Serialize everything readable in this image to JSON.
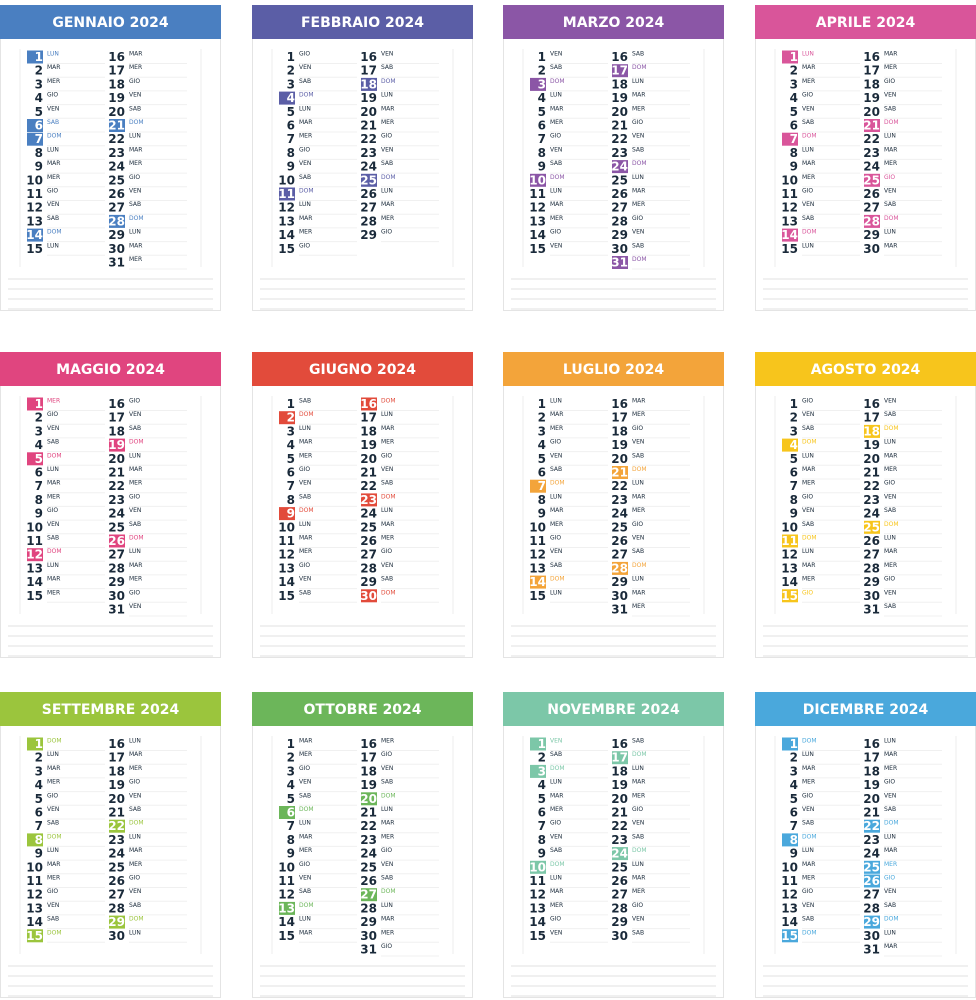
{
  "months": [
    {
      "title": "GENNAIO 2024",
      "color": "#4a7fc1",
      "days": [
        1,
        2,
        3,
        4,
        5,
        6,
        7,
        8,
        9,
        10,
        11,
        12,
        13,
        14,
        15,
        16,
        17,
        18,
        19,
        20,
        21,
        22,
        23,
        24,
        25,
        26,
        27,
        28,
        29,
        30,
        31
      ],
      "weekdays": [
        "LUN",
        "MAR",
        "MER",
        "GIO",
        "VEN",
        "SAB",
        "DOM",
        "LUN",
        "MAR",
        "MER",
        "GIO",
        "VEN",
        "SAB",
        "DOM",
        "LUN",
        "MAR",
        "MER",
        "GIO",
        "VEN",
        "SAB",
        "DOM",
        "LUN",
        "MAR",
        "MER",
        "GIO",
        "VEN",
        "SAB",
        "DOM",
        "LUN",
        "MAR",
        "MER"
      ],
      "highlight": [
        1,
        6,
        7,
        14,
        21,
        28
      ]
    },
    {
      "title": "FEBBRAIO 2024",
      "color": "#5b5ea6",
      "days": [
        1,
        2,
        3,
        4,
        5,
        6,
        7,
        8,
        9,
        10,
        11,
        12,
        13,
        14,
        15,
        16,
        17,
        18,
        19,
        20,
        21,
        22,
        23,
        24,
        25,
        26,
        27,
        28,
        29
      ],
      "weekdays": [
        "GIO",
        "VEN",
        "SAB",
        "DOM",
        "LUN",
        "MAR",
        "MER",
        "GIO",
        "VEN",
        "SAB",
        "DOM",
        "LUN",
        "MAR",
        "MER",
        "GIO",
        "VEN",
        "SAB",
        "DOM",
        "LUN",
        "MAR",
        "MER",
        "GIO",
        "VEN",
        "SAB",
        "DOM",
        "LUN",
        "MAR",
        "MER",
        "GIO"
      ],
      "highlight": [
        4,
        11,
        18,
        25
      ]
    },
    {
      "title": "MARZO 2024",
      "color": "#8b56a6",
      "days": [
        1,
        2,
        3,
        4,
        5,
        6,
        7,
        8,
        9,
        10,
        11,
        12,
        13,
        14,
        15,
        16,
        17,
        18,
        19,
        20,
        21,
        22,
        23,
        24,
        25,
        26,
        27,
        28,
        29,
        30,
        31
      ],
      "weekdays": [
        "VEN",
        "SAB",
        "DOM",
        "LUN",
        "MAR",
        "MER",
        "GIO",
        "VEN",
        "SAB",
        "DOM",
        "LUN",
        "MAR",
        "MER",
        "GIO",
        "VEN",
        "SAB",
        "DOM",
        "LUN",
        "MAR",
        "MER",
        "GIO",
        "VEN",
        "SAB",
        "DOM",
        "LUN",
        "MAR",
        "MER",
        "GIO",
        "VEN",
        "SAB",
        "DOM"
      ],
      "highlight": [
        3,
        10,
        17,
        24,
        31
      ]
    },
    {
      "title": "APRILE 2024",
      "color": "#d9559a",
      "days": [
        1,
        2,
        3,
        4,
        5,
        6,
        7,
        8,
        9,
        10,
        11,
        12,
        13,
        14,
        15,
        16,
        17,
        18,
        19,
        20,
        21,
        22,
        23,
        24,
        25,
        26,
        27,
        28,
        29,
        30
      ],
      "weekdays": [
        "LUN",
        "MAR",
        "MER",
        "GIO",
        "VEN",
        "SAB",
        "DOM",
        "LUN",
        "MAR",
        "MER",
        "GIO",
        "VEN",
        "SAB",
        "DOM",
        "LUN",
        "MAR",
        "MER",
        "GIO",
        "VEN",
        "SAB",
        "DOM",
        "LUN",
        "MAR",
        "MER",
        "GIO",
        "VEN",
        "SAB",
        "DOM",
        "LUN",
        "MAR"
      ],
      "highlight": [
        1,
        7,
        14,
        21,
        25,
        28
      ]
    },
    {
      "title": "MAGGIO 2024",
      "color": "#e0457f",
      "days": [
        1,
        2,
        3,
        4,
        5,
        6,
        7,
        8,
        9,
        10,
        11,
        12,
        13,
        14,
        15,
        16,
        17,
        18,
        19,
        20,
        21,
        22,
        23,
        24,
        25,
        26,
        27,
        28,
        29,
        30,
        31
      ],
      "weekdays": [
        "MER",
        "GIO",
        "VEN",
        "SAB",
        "DOM",
        "LUN",
        "MAR",
        "MER",
        "GIO",
        "VEN",
        "SAB",
        "DOM",
        "LUN",
        "MAR",
        "MER",
        "GIO",
        "VEN",
        "SAB",
        "DOM",
        "LUN",
        "MAR",
        "MER",
        "GIO",
        "VEN",
        "SAB",
        "DOM",
        "LUN",
        "MAR",
        "MER",
        "GIO",
        "VEN"
      ],
      "highlight": [
        1,
        5,
        12,
        19,
        26
      ]
    },
    {
      "title": "GIUGNO 2024",
      "color": "#e24b3b",
      "days": [
        1,
        2,
        3,
        4,
        5,
        6,
        7,
        8,
        9,
        10,
        11,
        12,
        13,
        14,
        15,
        16,
        17,
        18,
        19,
        20,
        21,
        22,
        23,
        24,
        25,
        26,
        27,
        28,
        29,
        30
      ],
      "weekdays": [
        "SAB",
        "DOM",
        "LUN",
        "MAR",
        "MER",
        "GIO",
        "VEN",
        "SAB",
        "DOM",
        "LUN",
        "MAR",
        "MER",
        "GIO",
        "VEN",
        "SAB",
        "DOM",
        "LUN",
        "MAR",
        "MER",
        "GIO",
        "VEN",
        "SAB",
        "DOM",
        "LUN",
        "MAR",
        "MER",
        "GIO",
        "VEN",
        "SAB",
        "DOM"
      ],
      "highlight": [
        2,
        9,
        16,
        23,
        30
      ]
    },
    {
      "title": "LUGLIO 2024",
      "color": "#f3a43a",
      "days": [
        1,
        2,
        3,
        4,
        5,
        6,
        7,
        8,
        9,
        10,
        11,
        12,
        13,
        14,
        15,
        16,
        17,
        18,
        19,
        20,
        21,
        22,
        23,
        24,
        25,
        26,
        27,
        28,
        29,
        30,
        31
      ],
      "weekdays": [
        "LUN",
        "MAR",
        "MER",
        "GIO",
        "VEN",
        "SAB",
        "DOM",
        "LUN",
        "MAR",
        "MER",
        "GIO",
        "VEN",
        "SAB",
        "DOM",
        "LUN",
        "MAR",
        "MER",
        "GIO",
        "VEN",
        "SAB",
        "DOM",
        "LUN",
        "MAR",
        "MER",
        "GIO",
        "VEN",
        "SAB",
        "DOM",
        "LUN",
        "MAR",
        "MER"
      ],
      "highlight": [
        7,
        14,
        21,
        28
      ]
    },
    {
      "title": "AGOSTO 2024",
      "color": "#f7c51c",
      "days": [
        1,
        2,
        3,
        4,
        5,
        6,
        7,
        8,
        9,
        10,
        11,
        12,
        13,
        14,
        15,
        16,
        17,
        18,
        19,
        20,
        21,
        22,
        23,
        24,
        25,
        26,
        27,
        28,
        29,
        30,
        31
      ],
      "weekdays": [
        "GIO",
        "VEN",
        "SAB",
        "DOM",
        "LUN",
        "MAR",
        "MER",
        "GIO",
        "VEN",
        "SAB",
        "DOM",
        "LUN",
        "MAR",
        "MER",
        "GIO",
        "VEN",
        "SAB",
        "DOM",
        "LUN",
        "MAR",
        "MER",
        "GIO",
        "VEN",
        "SAB",
        "DOM",
        "LUN",
        "MAR",
        "MER",
        "GIO",
        "VEN",
        "SAB"
      ],
      "highlight": [
        4,
        11,
        15,
        18,
        25
      ]
    },
    {
      "title": "SETTEMBRE 2024",
      "color": "#9bc53d",
      "days": [
        1,
        2,
        3,
        4,
        5,
        6,
        7,
        8,
        9,
        10,
        11,
        12,
        13,
        14,
        15,
        16,
        17,
        18,
        19,
        20,
        21,
        22,
        23,
        24,
        25,
        26,
        27,
        28,
        29,
        30
      ],
      "weekdays": [
        "DOM",
        "LUN",
        "MAR",
        "MER",
        "GIO",
        "VEN",
        "SAB",
        "DOM",
        "LUN",
        "MAR",
        "MER",
        "GIO",
        "VEN",
        "SAB",
        "DOM",
        "LUN",
        "MAR",
        "MER",
        "GIO",
        "VEN",
        "SAB",
        "DOM",
        "LUN",
        "MAR",
        "MER",
        "GIO",
        "VEN",
        "SAB",
        "DOM",
        "LUN"
      ],
      "highlight": [
        1,
        8,
        15,
        22,
        29
      ]
    },
    {
      "title": "OTTOBRE 2024",
      "color": "#6cb65a",
      "days": [
        1,
        2,
        3,
        4,
        5,
        6,
        7,
        8,
        9,
        10,
        11,
        12,
        13,
        14,
        15,
        16,
        17,
        18,
        19,
        20,
        21,
        22,
        23,
        24,
        25,
        26,
        27,
        28,
        29,
        30,
        31
      ],
      "weekdays": [
        "MAR",
        "MER",
        "GIO",
        "VEN",
        "SAB",
        "DOM",
        "LUN",
        "MAR",
        "MER",
        "GIO",
        "VEN",
        "SAB",
        "DOM",
        "LUN",
        "MAR",
        "MER",
        "GIO",
        "VEN",
        "SAB",
        "DOM",
        "LUN",
        "MAR",
        "MER",
        "GIO",
        "VEN",
        "SAB",
        "DOM",
        "LUN",
        "MAR",
        "MER",
        "GIO"
      ],
      "highlight": [
        6,
        13,
        20,
        27
      ]
    },
    {
      "title": "NOVEMBRE 2024",
      "color": "#7cc7a8",
      "days": [
        1,
        2,
        3,
        4,
        5,
        6,
        7,
        8,
        9,
        10,
        11,
        12,
        13,
        14,
        15,
        16,
        17,
        18,
        19,
        20,
        21,
        22,
        23,
        24,
        25,
        26,
        27,
        28,
        29,
        30
      ],
      "weekdays": [
        "VEN",
        "SAB",
        "DOM",
        "LUN",
        "MAR",
        "MER",
        "GIO",
        "VEN",
        "SAB",
        "DOM",
        "LUN",
        "MAR",
        "MER",
        "GIO",
        "VEN",
        "SAB",
        "DOM",
        "LUN",
        "MAR",
        "MER",
        "GIO",
        "VEN",
        "SAB",
        "DOM",
        "LUN",
        "MAR",
        "MER",
        "GIO",
        "VEN",
        "SAB"
      ],
      "highlight": [
        1,
        3,
        10,
        17,
        24
      ]
    },
    {
      "title": "DICEMBRE 2024",
      "color": "#4aa8dc",
      "days": [
        1,
        2,
        3,
        4,
        5,
        6,
        7,
        8,
        9,
        10,
        11,
        12,
        13,
        14,
        15,
        16,
        17,
        18,
        19,
        20,
        21,
        22,
        23,
        24,
        25,
        26,
        27,
        28,
        29,
        30,
        31
      ],
      "weekdays": [
        "DOM",
        "LUN",
        "MAR",
        "MER",
        "GIO",
        "VEN",
        "SAB",
        "DOM",
        "LUN",
        "MAR",
        "MER",
        "GIO",
        "VEN",
        "SAB",
        "DOM",
        "LUN",
        "MAR",
        "MER",
        "GIO",
        "VEN",
        "SAB",
        "DOM",
        "LUN",
        "MAR",
        "MER",
        "GIO",
        "VEN",
        "SAB",
        "DOM",
        "LUN",
        "MAR"
      ],
      "highlight": [
        1,
        8,
        15,
        22,
        25,
        26,
        29
      ]
    }
  ]
}
